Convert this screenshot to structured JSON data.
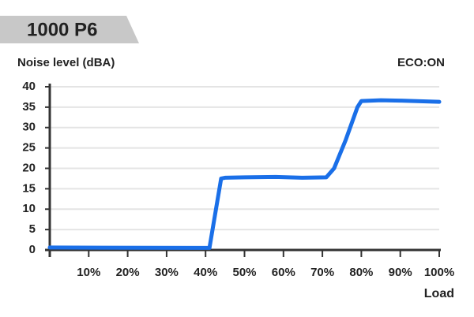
{
  "chart_data": {
    "type": "line",
    "title": "1000 P6",
    "y_label": "Noise level (dBA)",
    "x_label": "Load",
    "annotation": "ECO:ON",
    "x": [
      0,
      40,
      41,
      44,
      45,
      50,
      58,
      65,
      71,
      73,
      76,
      79,
      80,
      85,
      90,
      100
    ],
    "series": [
      {
        "name": "Noise",
        "color": "#1a6fe8",
        "values": [
          0.6,
          0.5,
          0.5,
          17.5,
          17.7,
          17.8,
          17.9,
          17.7,
          17.8,
          20,
          27,
          35,
          36.5,
          36.7,
          36.6,
          36.3
        ]
      }
    ],
    "xlim": [
      0,
      100
    ],
    "xticks": [
      {
        "value": 10,
        "label": "10%"
      },
      {
        "value": 20,
        "label": "20%"
      },
      {
        "value": 30,
        "label": "30%"
      },
      {
        "value": 40,
        "label": "40%"
      },
      {
        "value": 50,
        "label": "50%"
      },
      {
        "value": 60,
        "label": "60%"
      },
      {
        "value": 70,
        "label": "70%"
      },
      {
        "value": 80,
        "label": "80%"
      },
      {
        "value": 90,
        "label": "90%"
      },
      {
        "value": 100,
        "label": "100%"
      }
    ],
    "ylim": [
      0,
      40
    ],
    "yticks": [
      0,
      5,
      10,
      15,
      20,
      25,
      30,
      35,
      40
    ],
    "grid": true
  }
}
